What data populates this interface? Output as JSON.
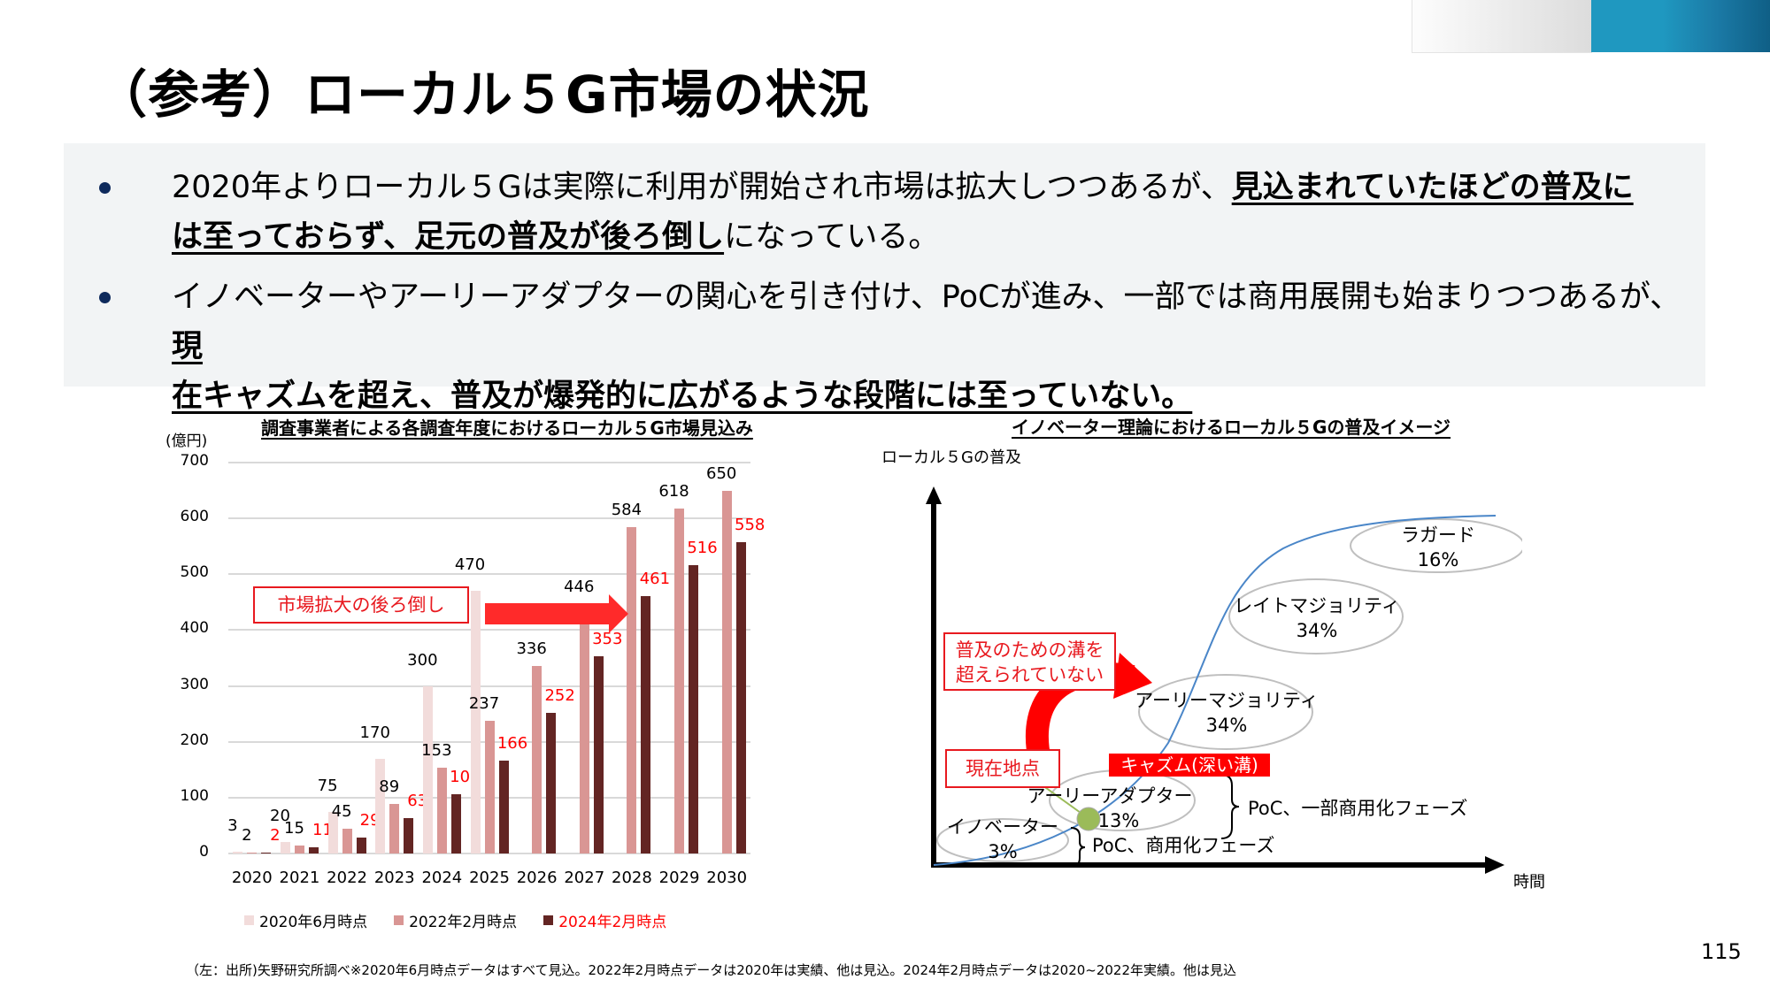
{
  "header": {
    "title": "（参考）ローカル５G市場の状況",
    "page_number": "115"
  },
  "summary": {
    "bullets": [
      {
        "line1_plain": "2020年よりローカル５Gは実際に利用が開始され市場は拡大しつつあるが、",
        "line1_bold": "見込まれていたほどの普及に",
        "line2_bold": "は至っておらず、足元の普及が後ろ倒し",
        "line2_plain": "になっている。"
      },
      {
        "line1_plain": "イノベーターやアーリーアダプターの関心を引き付け、PoCが進み、一部では商用展開も始まりつつあるが、",
        "line1_bold": "現",
        "line2_bold": "在キャズムを超え、普及が爆発的に広がるような段階には至っていない。",
        "line2_plain": ""
      }
    ]
  },
  "left_chart": {
    "callout": "市場拡大の後ろ倒し"
  },
  "right_diagram": {
    "title": "イノベーター理論におけるローカル５Gの普及イメージ",
    "y_axis_label": "ローカル５Gの普及",
    "x_axis_label": "時間",
    "segments": [
      {
        "name": "イノベーター",
        "share": "3%"
      },
      {
        "name": "アーリーアダプター",
        "share": "13%"
      },
      {
        "name": "アーリーマジョリティ",
        "share": "34%"
      },
      {
        "name": "レイトマジョリティ",
        "share": "34%"
      },
      {
        "name": "ラガード",
        "share": "16%"
      }
    ],
    "chasm_label": "キャズム(深い溝)",
    "gap_callout_line1": "普及のための溝を",
    "gap_callout_line2": "超えられていない",
    "current_point_label": "現在地点",
    "phase_early": "PoC、一部商用化フェーズ",
    "phase_innovator": "PoC、商用化フェーズ",
    "colors": {
      "curve": "#4a86c8",
      "ellipse": "#bfbfbf",
      "current_dot": "#9bbb59",
      "accent_red": "#ff0000"
    }
  },
  "footer": {
    "source": "（左：出所)矢野研究所調べ※2020年6月時点データはすべて見込。2022年2月時点データは2020年は実績、他は見込。2024年2月時点データは2020~2022年実績。他は見込"
  },
  "chart_data": {
    "type": "bar",
    "title": "調査事業者による各調査年度におけるローカル５G市場見込み",
    "xlabel": "",
    "ylabel": "(億円)",
    "ylim": [
      0,
      700
    ],
    "yticks": [
      0,
      100,
      200,
      300,
      400,
      500,
      600,
      700
    ],
    "grid": true,
    "legend_position": "bottom",
    "categories": [
      "2020",
      "2021",
      "2022",
      "2023",
      "2024",
      "2025",
      "2026",
      "2027",
      "2028",
      "2029",
      "2030"
    ],
    "series": [
      {
        "name": "2020年6月時点",
        "color": "#f2dcdb",
        "label_color": "#000000",
        "values": [
          3,
          20,
          75,
          170,
          300,
          470,
          null,
          null,
          null,
          null,
          null
        ]
      },
      {
        "name": "2022年2月時点",
        "color": "#d99694",
        "label_color": "#000000",
        "values": [
          2,
          15,
          45,
          89,
          153,
          237,
          336,
          446,
          584,
          618,
          650
        ]
      },
      {
        "name": "2024年2月時点",
        "color": "#632523",
        "label_color": "#ff0000",
        "values": [
          2,
          11,
          29,
          63,
          106,
          166,
          252,
          353,
          461,
          516,
          558
        ]
      }
    ],
    "annotations": [
      "市場拡大の後ろ倒し"
    ]
  }
}
